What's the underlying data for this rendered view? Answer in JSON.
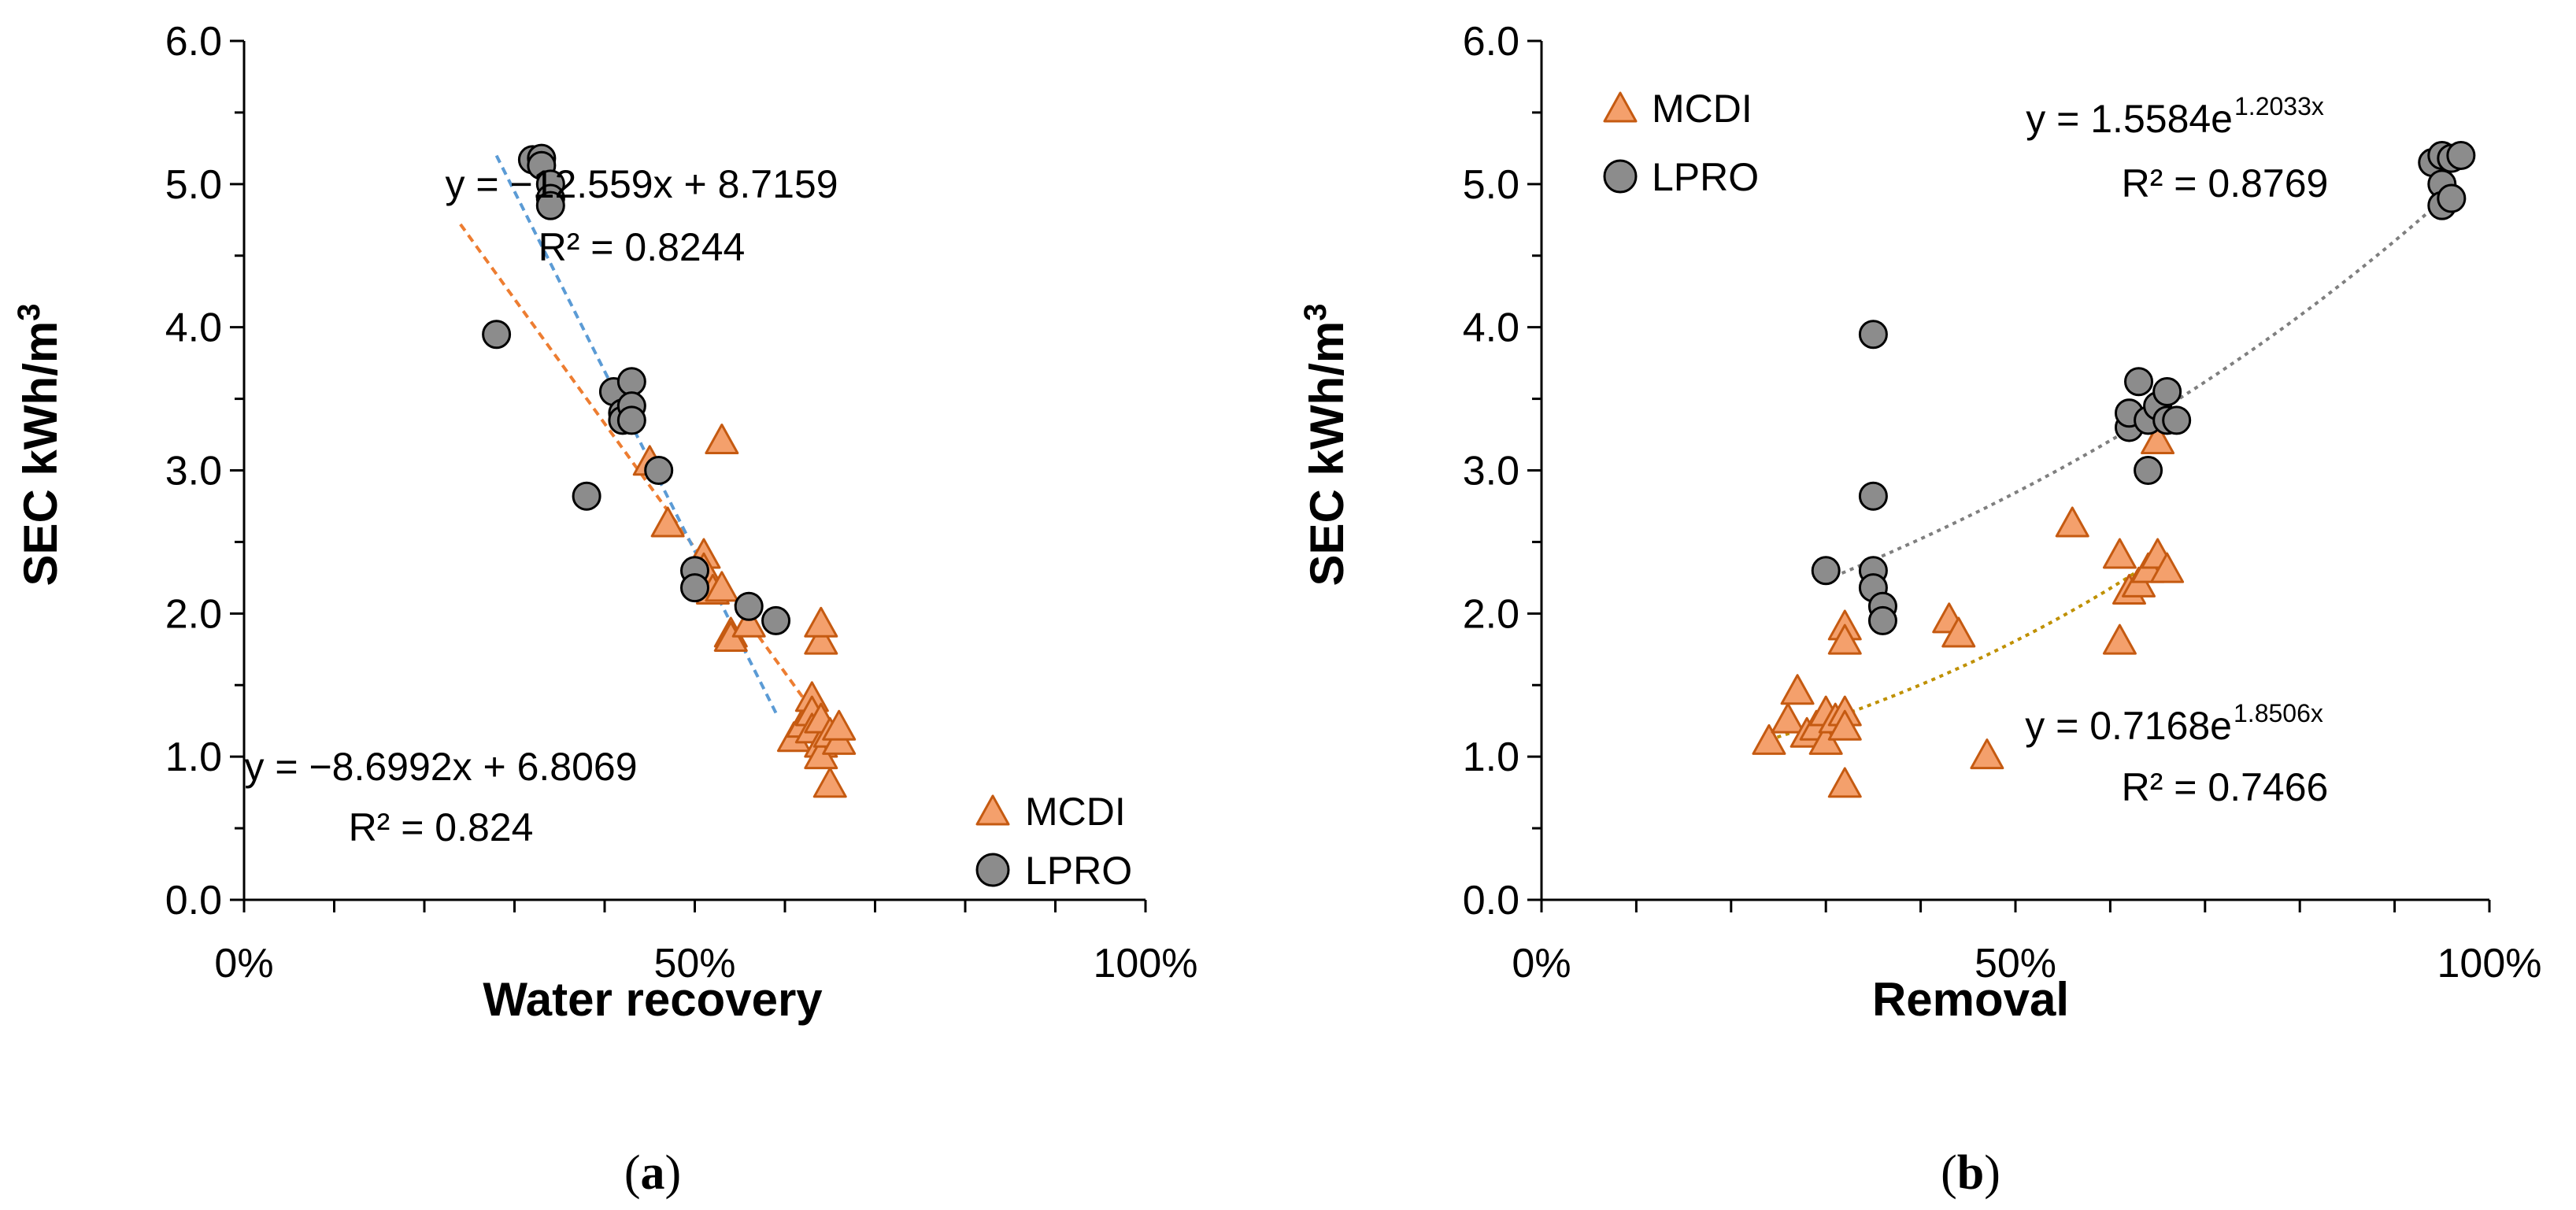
{
  "colors": {
    "mcdi_fill": "#f4a06c",
    "mcdi_stroke": "#c55a11",
    "lpro_fill": "#8c8c8c",
    "lpro_stroke": "#000000",
    "fit_a_mcdi": "#ed7d31",
    "fit_a_lpro": "#5b9bd5",
    "fit_b_mcdi": "#bf9000",
    "fit_b_lpro": "#7f7f7f"
  },
  "chart_data": [
    {
      "type": "scatter",
      "panel_label": "(a)",
      "xlabel": "Water recovery",
      "ylabel": "SEC kWh/m³",
      "xlim": [
        0,
        1
      ],
      "ylim": [
        0,
        6
      ],
      "x_ticks": [
        "0%",
        "50%",
        "100%"
      ],
      "y_ticks": [
        "0.0",
        "1.0",
        "2.0",
        "3.0",
        "4.0",
        "5.0",
        "6.0"
      ],
      "legend": [
        "MCDI",
        "LPRO"
      ],
      "legend_position": "bottom-right",
      "series": [
        {
          "name": "MCDI",
          "marker": "triangle",
          "points": [
            [
              0.45,
              3.05
            ],
            [
              0.47,
              2.62
            ],
            [
              0.51,
              2.4
            ],
            [
              0.51,
              2.3
            ],
            [
              0.52,
              2.15
            ],
            [
              0.53,
              3.2
            ],
            [
              0.53,
              2.17
            ],
            [
              0.54,
              1.85
            ],
            [
              0.54,
              1.82
            ],
            [
              0.56,
              1.92
            ],
            [
              0.61,
              1.12
            ],
            [
              0.62,
              1.22
            ],
            [
              0.63,
              1.4
            ],
            [
              0.63,
              1.3
            ],
            [
              0.63,
              1.18
            ],
            [
              0.64,
              1.08
            ],
            [
              0.64,
              1.25
            ],
            [
              0.64,
              1.0
            ],
            [
              0.64,
              1.8
            ],
            [
              0.64,
              1.92
            ],
            [
              0.65,
              0.8
            ],
            [
              0.65,
              1.15
            ],
            [
              0.66,
              1.1
            ],
            [
              0.66,
              1.2
            ]
          ]
        },
        {
          "name": "LPRO",
          "marker": "circle",
          "points": [
            [
              0.28,
              3.95
            ],
            [
              0.32,
              5.17
            ],
            [
              0.33,
              5.18
            ],
            [
              0.33,
              5.13
            ],
            [
              0.34,
              5.0
            ],
            [
              0.34,
              4.9
            ],
            [
              0.34,
              4.85
            ],
            [
              0.38,
              2.82
            ],
            [
              0.41,
              3.55
            ],
            [
              0.42,
              3.4
            ],
            [
              0.42,
              3.35
            ],
            [
              0.43,
              3.62
            ],
            [
              0.43,
              3.45
            ],
            [
              0.43,
              3.35
            ],
            [
              0.46,
              3.0
            ],
            [
              0.5,
              2.3
            ],
            [
              0.5,
              2.18
            ],
            [
              0.56,
              2.05
            ],
            [
              0.59,
              1.95
            ]
          ]
        }
      ],
      "trendlines": [
        {
          "series": "MCDI",
          "type": "linear",
          "slope": -8.6992,
          "intercept": 6.8069,
          "x_range": [
            0.24,
            0.62
          ],
          "equation": "y = −8.6992x + 6.8069",
          "r2": "R² = 0.824"
        },
        {
          "series": "LPRO",
          "type": "linear",
          "slope": -12.559,
          "intercept": 8.7159,
          "x_range": [
            0.28,
            0.59
          ],
          "equation": "y = −12.559x + 8.7159",
          "r2": "R² = 0.8244"
        }
      ]
    },
    {
      "type": "scatter",
      "panel_label": "(b)",
      "xlabel": "Removal",
      "ylabel": "SEC kWh/m³",
      "xlim": [
        0,
        1
      ],
      "ylim": [
        0,
        6
      ],
      "x_ticks": [
        "0%",
        "50%",
        "100%"
      ],
      "y_ticks": [
        "0.0",
        "1.0",
        "2.0",
        "3.0",
        "4.0",
        "5.0",
        "6.0"
      ],
      "legend": [
        "MCDI",
        "LPRO"
      ],
      "legend_position": "top-left",
      "series": [
        {
          "name": "MCDI",
          "marker": "triangle",
          "points": [
            [
              0.24,
              1.1
            ],
            [
              0.26,
              1.25
            ],
            [
              0.27,
              1.45
            ],
            [
              0.28,
              1.15
            ],
            [
              0.29,
              1.2
            ],
            [
              0.3,
              1.3
            ],
            [
              0.3,
              1.1
            ],
            [
              0.31,
              1.25
            ],
            [
              0.32,
              1.3
            ],
            [
              0.32,
              1.2
            ],
            [
              0.32,
              1.9
            ],
            [
              0.32,
              1.8
            ],
            [
              0.32,
              0.8
            ],
            [
              0.43,
              1.95
            ],
            [
              0.44,
              1.85
            ],
            [
              0.47,
              1.0
            ],
            [
              0.56,
              2.62
            ],
            [
              0.61,
              2.4
            ],
            [
              0.61,
              1.8
            ],
            [
              0.62,
              2.15
            ],
            [
              0.63,
              2.2
            ],
            [
              0.64,
              2.3
            ],
            [
              0.65,
              2.4
            ],
            [
              0.65,
              3.2
            ],
            [
              0.66,
              2.3
            ]
          ]
        },
        {
          "name": "LPRO",
          "marker": "circle",
          "points": [
            [
              0.3,
              2.3
            ],
            [
              0.35,
              3.95
            ],
            [
              0.35,
              2.82
            ],
            [
              0.35,
              2.3
            ],
            [
              0.35,
              2.18
            ],
            [
              0.36,
              2.05
            ],
            [
              0.36,
              1.95
            ],
            [
              0.62,
              3.3
            ],
            [
              0.62,
              3.4
            ],
            [
              0.63,
              3.62
            ],
            [
              0.64,
              3.35
            ],
            [
              0.64,
              3.0
            ],
            [
              0.65,
              3.45
            ],
            [
              0.66,
              3.35
            ],
            [
              0.66,
              3.55
            ],
            [
              0.67,
              3.35
            ],
            [
              0.94,
              5.15
            ],
            [
              0.95,
              5.0
            ],
            [
              0.95,
              4.85
            ],
            [
              0.95,
              5.2
            ],
            [
              0.96,
              4.9
            ],
            [
              0.96,
              5.18
            ],
            [
              0.97,
              5.2
            ]
          ]
        }
      ],
      "trendlines": [
        {
          "series": "MCDI",
          "type": "exponential",
          "a": 0.7168,
          "b": 1.8506,
          "x_range": [
            0.24,
            0.66
          ],
          "equation_base": "y = 0.7168e",
          "equation_exp": "1.8506x",
          "r2": "R² = 0.7466"
        },
        {
          "series": "LPRO",
          "type": "exponential",
          "a": 1.5584,
          "b": 1.2033,
          "x_range": [
            0.3,
            0.97
          ],
          "equation_base": "y = 1.5584e",
          "equation_exp": "1.2033x",
          "r2": "R² = 0.8769"
        }
      ]
    }
  ]
}
